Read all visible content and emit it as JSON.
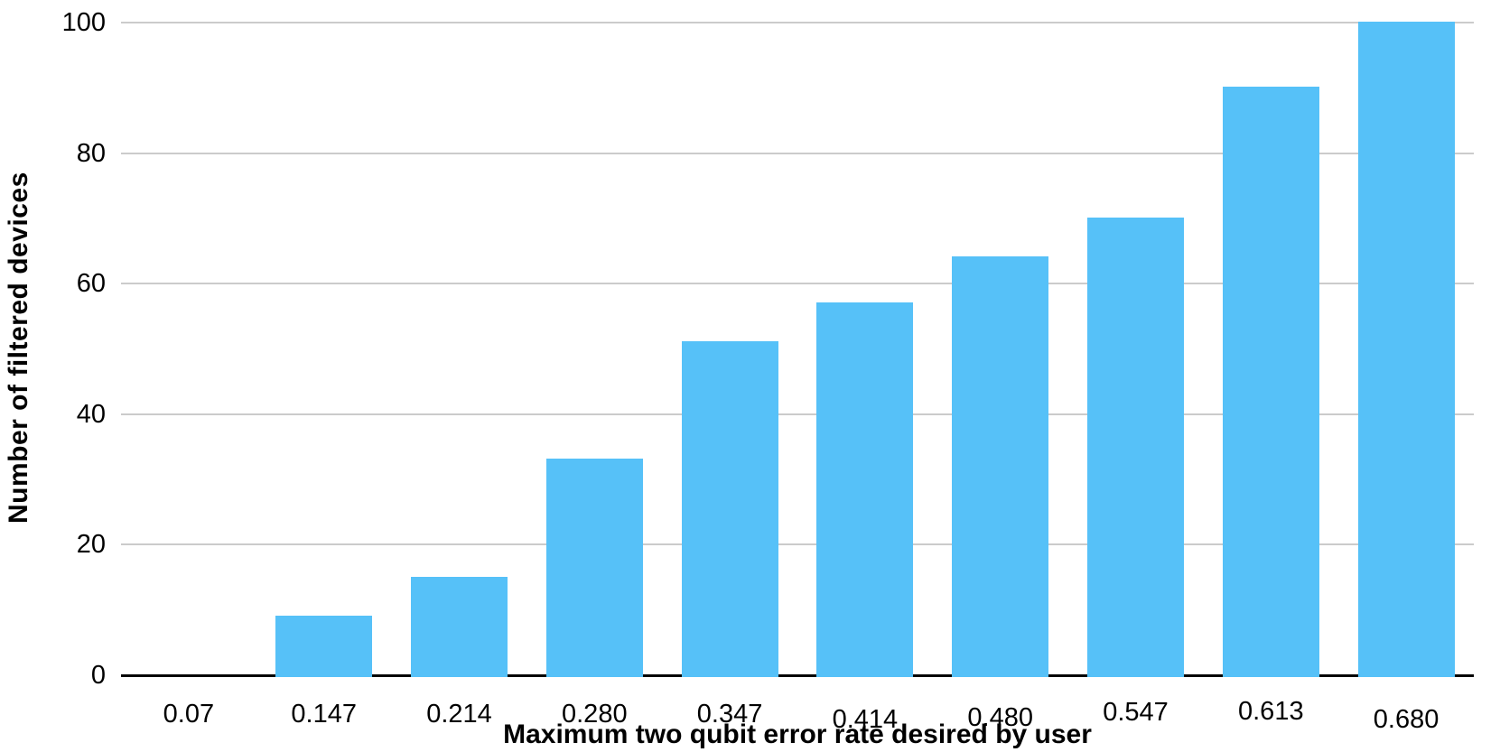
{
  "chart_data": {
    "type": "bar",
    "title": "",
    "categories": [
      "0.07",
      "0.147",
      "0.214",
      "0.280",
      "0.347",
      "0.414",
      "0.480",
      "0.547",
      "0.613",
      "0.680"
    ],
    "values": [
      0,
      9,
      15,
      33,
      51,
      57,
      64,
      70,
      90,
      100
    ],
    "xlabel": "Maximum two qubit error rate desired by user",
    "ylabel": "Number of filtered devices",
    "ylim": [
      0,
      100
    ],
    "yticks": [
      0,
      20,
      40,
      60,
      80,
      100
    ],
    "grid": true,
    "legend": false,
    "bar_color": "#56C1F8",
    "gridline_color": "#CBCBCB",
    "axis_line_color": "#000000",
    "text_color": "#000000"
  }
}
